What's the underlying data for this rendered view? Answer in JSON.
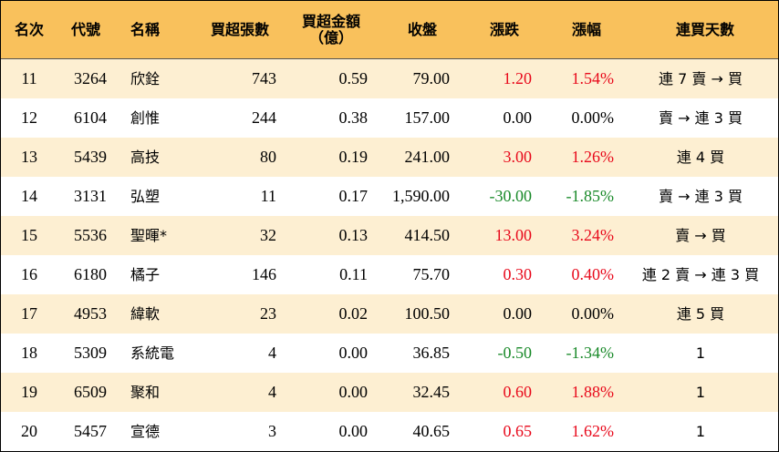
{
  "headers": {
    "rank": "名次",
    "code": "代號",
    "name": "名稱",
    "net_buy_lots": "買超張數",
    "net_buy_amount": "買超金額\n（億）",
    "close": "收盤",
    "change": "漲跌",
    "change_pct": "漲幅",
    "streak": "連買天數"
  },
  "colors": {
    "header_bg": "#f9c15c",
    "stripe_bg": "#fdefd2",
    "up": "#e8091b",
    "down": "#1a8a2a"
  },
  "rows": [
    {
      "rank": "11",
      "code": "3264",
      "name": "欣銓",
      "lots": "743",
      "amount": "0.59",
      "close": "79.00",
      "change": "1.20",
      "pct": "1.54%",
      "dir": "up",
      "streak": "連 7 賣 → 買"
    },
    {
      "rank": "12",
      "code": "6104",
      "name": "創惟",
      "lots": "244",
      "amount": "0.38",
      "close": "157.00",
      "change": "0.00",
      "pct": "0.00%",
      "dir": "flat",
      "streak": "賣 → 連 3 買"
    },
    {
      "rank": "13",
      "code": "5439",
      "name": "高技",
      "lots": "80",
      "amount": "0.19",
      "close": "241.00",
      "change": "3.00",
      "pct": "1.26%",
      "dir": "up",
      "streak": "連 4 買"
    },
    {
      "rank": "14",
      "code": "3131",
      "name": "弘塑",
      "lots": "11",
      "amount": "0.17",
      "close": "1,590.00",
      "change": "-30.00",
      "pct": "-1.85%",
      "dir": "down",
      "streak": "賣 → 連 3 買"
    },
    {
      "rank": "15",
      "code": "5536",
      "name": "聖暉*",
      "lots": "32",
      "amount": "0.13",
      "close": "414.50",
      "change": "13.00",
      "pct": "3.24%",
      "dir": "up",
      "streak": "賣 → 買"
    },
    {
      "rank": "16",
      "code": "6180",
      "name": "橘子",
      "lots": "146",
      "amount": "0.11",
      "close": "75.70",
      "change": "0.30",
      "pct": "0.40%",
      "dir": "up",
      "streak": "連 2 賣 → 連 3 買"
    },
    {
      "rank": "17",
      "code": "4953",
      "name": "緯軟",
      "lots": "23",
      "amount": "0.02",
      "close": "100.50",
      "change": "0.00",
      "pct": "0.00%",
      "dir": "flat",
      "streak": "連 5 買"
    },
    {
      "rank": "18",
      "code": "5309",
      "name": "系統電",
      "lots": "4",
      "amount": "0.00",
      "close": "36.85",
      "change": "-0.50",
      "pct": "-1.34%",
      "dir": "down",
      "streak": "1"
    },
    {
      "rank": "19",
      "code": "6509",
      "name": "聚和",
      "lots": "4",
      "amount": "0.00",
      "close": "32.45",
      "change": "0.60",
      "pct": "1.88%",
      "dir": "up",
      "streak": "1"
    },
    {
      "rank": "20",
      "code": "5457",
      "name": "宣德",
      "lots": "3",
      "amount": "0.00",
      "close": "40.65",
      "change": "0.65",
      "pct": "1.62%",
      "dir": "up",
      "streak": "1"
    }
  ]
}
